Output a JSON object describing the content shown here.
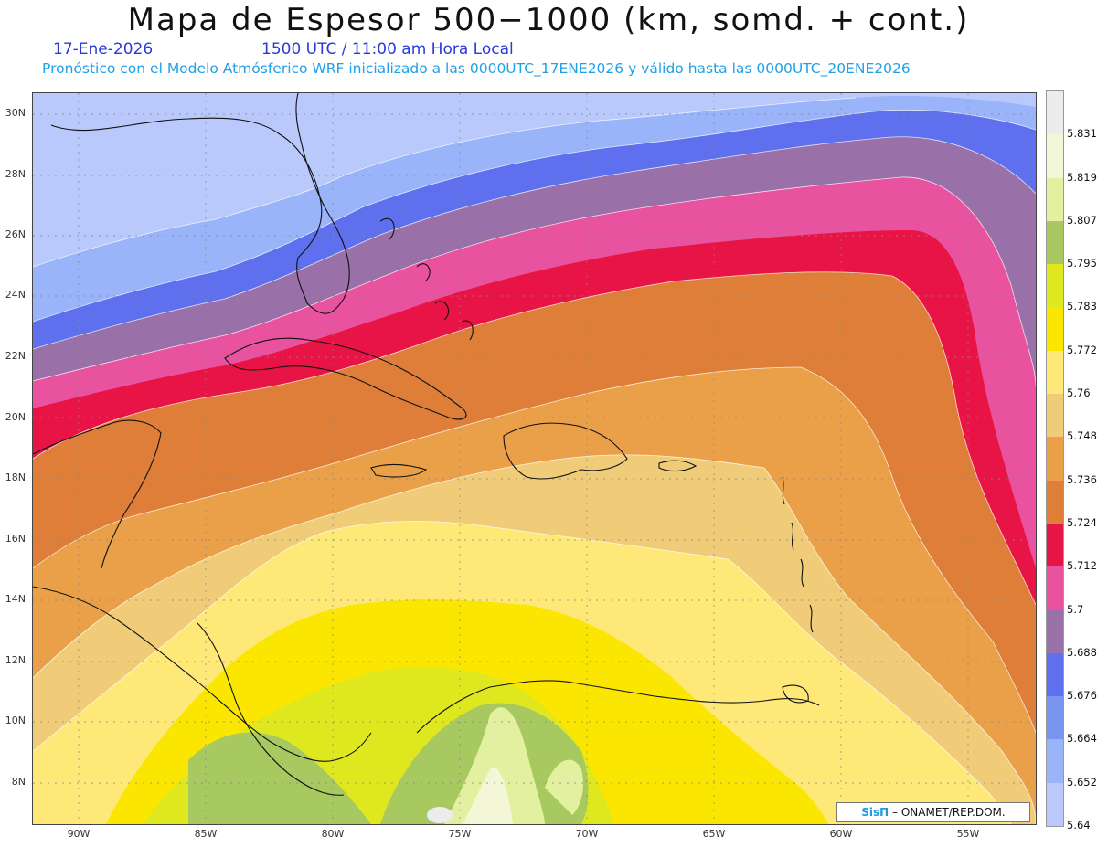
{
  "header": {
    "title": "Mapa de Espesor 500−1000 (km, somd. + cont.)",
    "date": "17-Ene-2026",
    "time": "1500 UTC / 11:00 am Hora Local",
    "model_line": "Pronóstico con el Modelo Atmósferico WRF inicializado a las 0000UTC_17ENE2026 y válido hasta las  0000UTC_20ENE2026"
  },
  "map": {
    "lat_labels": [
      "30N",
      "28N",
      "26N",
      "24N",
      "22N",
      "20N",
      "18N",
      "16N",
      "14N",
      "12N",
      "10N",
      "8N"
    ],
    "lon_labels": [
      "90W",
      "85W",
      "80W",
      "75W",
      "70W",
      "65W",
      "60W",
      "55W"
    ],
    "credit_brand": "SisΠ",
    "credit_text": " – ONAMET/REP.DOM."
  },
  "colorbar": {
    "levels": [
      "5.831",
      "5.819",
      "5.807",
      "5.795",
      "5.783",
      "5.772",
      "5.76",
      "5.748",
      "5.736",
      "5.724",
      "5.712",
      "5.7",
      "5.688",
      "5.676",
      "5.664",
      "5.652",
      "5.64"
    ],
    "colors": [
      "#ececec",
      "#f3f7d8",
      "#e3f0a0",
      "#a8c860",
      "#dfe81e",
      "#fae600",
      "#fde878",
      "#f0cc78",
      "#eaa048",
      "#de7e38",
      "#e81446",
      "#e8529e",
      "#9a70a8",
      "#5e70ee",
      "#7895f0",
      "#9ab4fa",
      "#b9c9fb"
    ]
  }
}
